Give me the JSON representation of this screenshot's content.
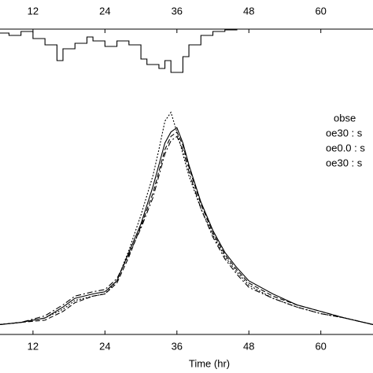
{
  "chart_data": [
    {
      "type": "step",
      "xlim": [
        6.5,
        68.7
      ],
      "xticks": [
        12,
        24,
        36,
        48,
        60
      ],
      "ylim": [
        0,
        60
      ],
      "invert": true,
      "tick_side": "top",
      "x": [
        6.5,
        8,
        10,
        12,
        14,
        16,
        17,
        19,
        21,
        22,
        24,
        26,
        28,
        30,
        31,
        33,
        34,
        35,
        37,
        38,
        40,
        42,
        44,
        46
      ],
      "series": [
        {
          "color": "#000000",
          "style": "solid",
          "values": [
            5,
            8,
            3,
            12,
            20,
            40,
            25,
            18,
            10,
            15,
            22,
            15,
            20,
            38,
            45,
            50,
            40,
            55,
            35,
            20,
            8,
            3,
            1,
            0
          ]
        }
      ]
    },
    {
      "type": "line",
      "xlabel": "Time (hr)",
      "xlim": [
        6.5,
        68.7
      ],
      "xticks": [
        12,
        24,
        36,
        48,
        60
      ],
      "ylim": [
        0,
        100
      ],
      "tick_side": "bottom",
      "x": [
        6.5,
        10,
        14,
        17,
        19,
        22,
        24,
        26,
        28,
        30,
        32,
        33,
        34,
        35,
        36,
        37,
        38,
        40,
        42,
        44,
        46,
        48,
        52,
        56,
        60,
        64,
        68.7
      ],
      "series": [
        {
          "name": "obse",
          "color": "#000000",
          "style": "solid",
          "values": [
            2,
            3,
            5,
            10,
            14,
            16,
            17,
            22,
            35,
            48,
            65,
            75,
            85,
            90,
            92,
            85,
            75,
            58,
            45,
            35,
            28,
            22,
            16,
            11,
            8,
            5,
            2
          ]
        },
        {
          "name": "oe30 : s",
          "color": "#000000",
          "style": "dotted",
          "values": [
            2,
            3,
            5,
            9,
            13,
            15,
            16,
            22,
            36,
            52,
            70,
            82,
            95,
            99,
            90,
            80,
            70,
            55,
            43,
            33,
            26,
            20,
            14,
            10,
            7,
            5,
            2
          ]
        },
        {
          "name": "oe0.0 : s",
          "color": "#000000",
          "style": "dashed",
          "values": [
            2,
            3,
            4,
            8,
            12,
            15,
            16,
            21,
            33,
            47,
            62,
            72,
            82,
            88,
            90,
            84,
            74,
            57,
            44,
            34,
            27,
            21,
            15,
            11,
            8,
            5,
            2
          ]
        },
        {
          "name": "oe30 : s",
          "color": "#000000",
          "style": "dashdot",
          "values": [
            2,
            3,
            6,
            11,
            15,
            17,
            18,
            23,
            34,
            46,
            60,
            70,
            80,
            86,
            88,
            82,
            72,
            55,
            42,
            32,
            25,
            19,
            14,
            10,
            7,
            5,
            2
          ]
        }
      ]
    }
  ]
}
